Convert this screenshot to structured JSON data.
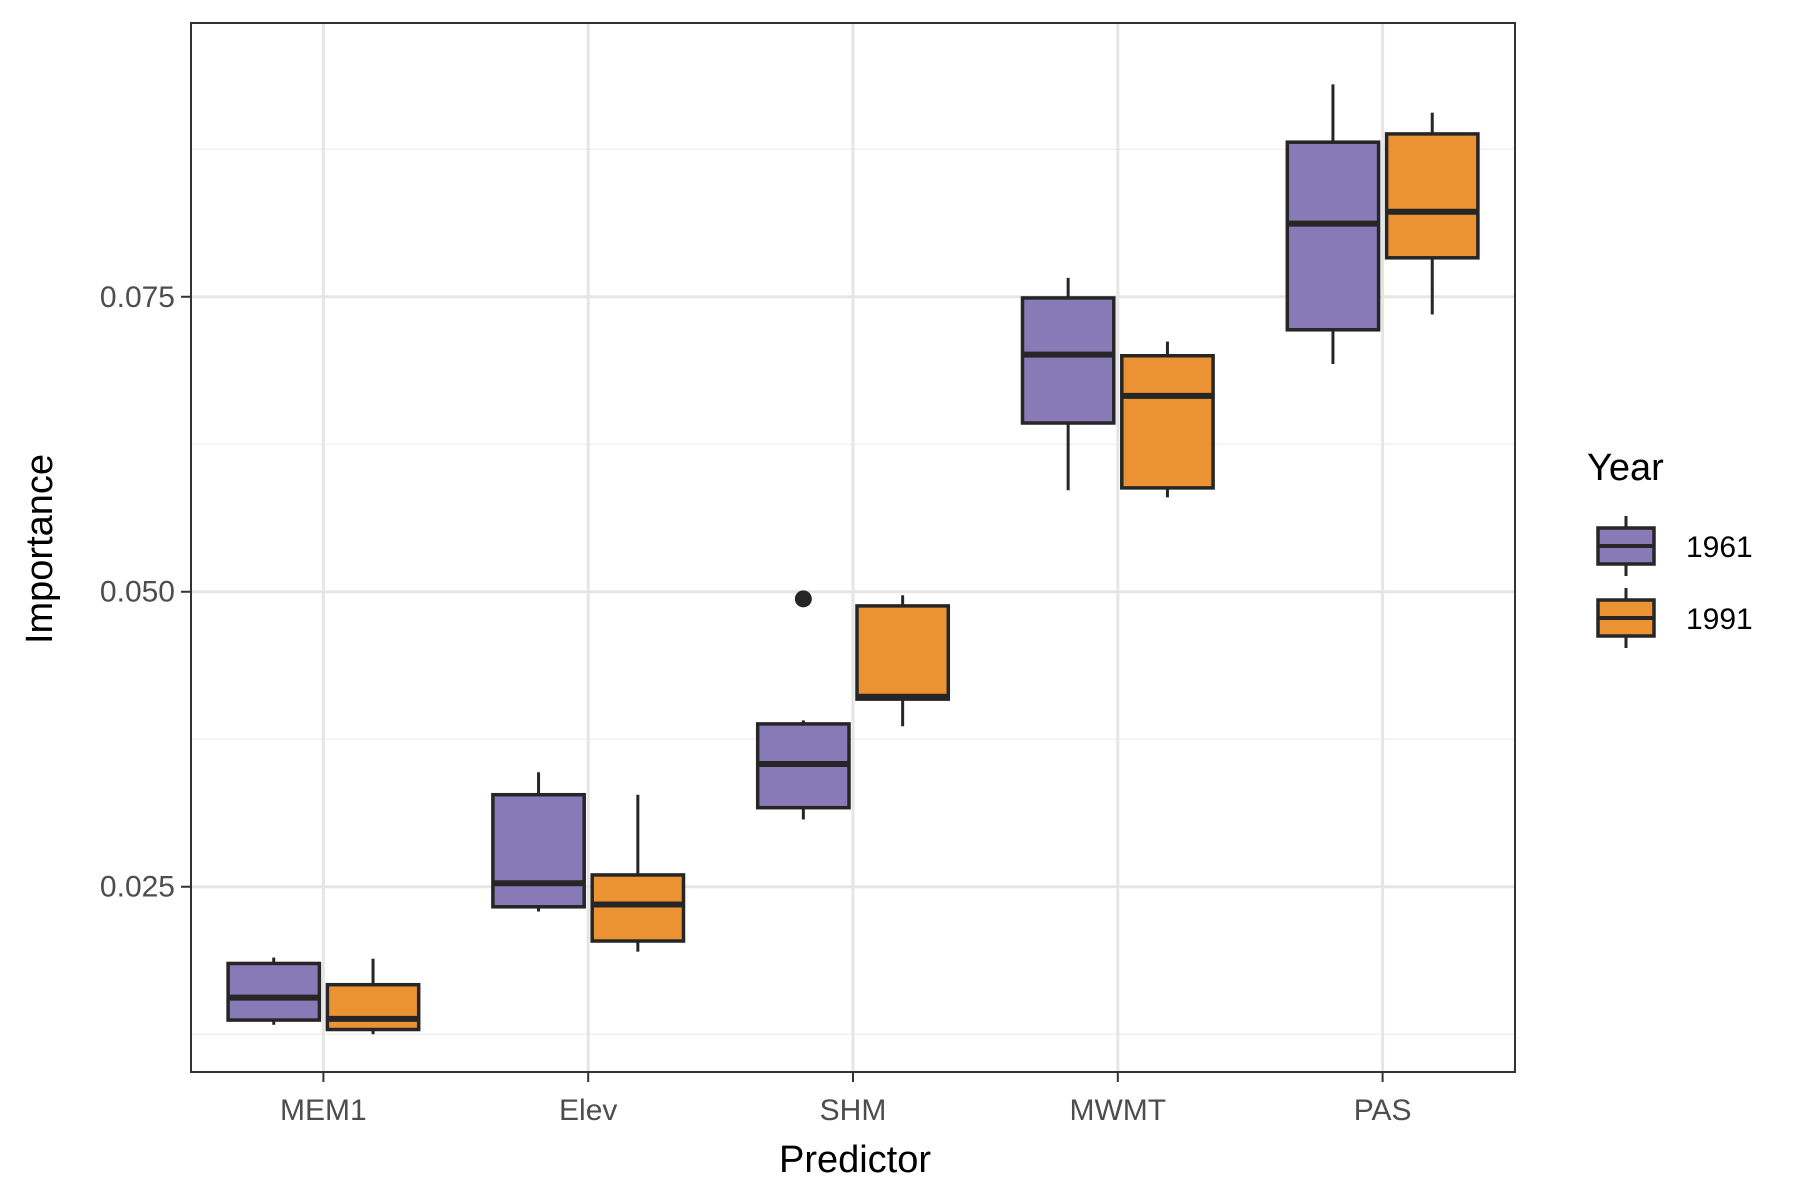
{
  "chart_data": {
    "type": "boxplot",
    "xlabel": "Predictor",
    "ylabel": "Importance",
    "categories": [
      "MEM1",
      "Elev",
      "SHM",
      "MWMT",
      "PAS"
    ],
    "ylim": [
      0.0093,
      0.0982
    ],
    "yticks": [
      0.025,
      0.05,
      0.075
    ],
    "ytick_labels": [
      "0.025",
      "0.050",
      "0.075"
    ],
    "grid": true,
    "legend": {
      "title": "Year",
      "position": "right"
    },
    "series": [
      {
        "name": "1961",
        "color": "#8879b7",
        "boxes": [
          {
            "min": 0.0133,
            "q1": 0.0137,
            "median": 0.0156,
            "q3": 0.0185,
            "max": 0.019,
            "outliers": []
          },
          {
            "min": 0.0229,
            "q1": 0.0233,
            "median": 0.0253,
            "q3": 0.0328,
            "max": 0.0347,
            "outliers": []
          },
          {
            "min": 0.0307,
            "q1": 0.0317,
            "median": 0.0354,
            "q3": 0.0388,
            "max": 0.0391,
            "outliers": [
              0.0494
            ]
          },
          {
            "min": 0.0586,
            "q1": 0.0643,
            "median": 0.0701,
            "q3": 0.0749,
            "max": 0.0766,
            "outliers": []
          },
          {
            "min": 0.0693,
            "q1": 0.0722,
            "median": 0.0812,
            "q3": 0.0881,
            "max": 0.093,
            "outliers": []
          }
        ]
      },
      {
        "name": "1991",
        "color": "#eb9232",
        "boxes": [
          {
            "min": 0.0125,
            "q1": 0.0129,
            "median": 0.0138,
            "q3": 0.0167,
            "max": 0.0189,
            "outliers": []
          },
          {
            "min": 0.0195,
            "q1": 0.0204,
            "median": 0.0235,
            "q3": 0.026,
            "max": 0.0328,
            "outliers": []
          },
          {
            "min": 0.0386,
            "q1": 0.0409,
            "median": 0.0411,
            "q3": 0.0488,
            "max": 0.0497,
            "outliers": []
          },
          {
            "min": 0.058,
            "q1": 0.0588,
            "median": 0.0666,
            "q3": 0.07,
            "max": 0.0712,
            "outliers": []
          },
          {
            "min": 0.0735,
            "q1": 0.0783,
            "median": 0.0822,
            "q3": 0.0888,
            "max": 0.0906,
            "outliers": []
          }
        ]
      }
    ]
  }
}
